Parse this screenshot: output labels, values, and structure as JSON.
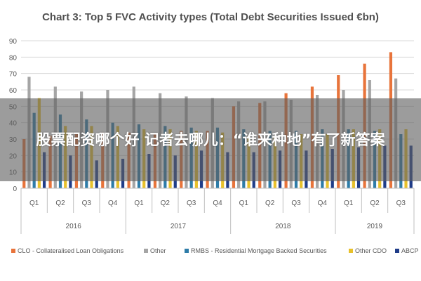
{
  "banner": {
    "text": "股票配资哪个好 记者去哪儿：“谁来种地”有了新答案"
  },
  "chart_data": {
    "type": "bar",
    "title": "Chart 3: Top 5 FVC Activity types (Total Debt Securities Issued €bn)",
    "ylim": [
      0,
      90
    ],
    "yticks": [
      0,
      10,
      20,
      30,
      40,
      50,
      60,
      70,
      80,
      90
    ],
    "grid": true,
    "legend_position": "bottom",
    "categories": [
      "Q1",
      "Q2",
      "Q3",
      "Q4",
      "Q1",
      "Q2",
      "Q3",
      "Q4",
      "Q1",
      "Q2",
      "Q3",
      "Q4",
      "Q1",
      "Q2",
      "Q3"
    ],
    "groups": [
      {
        "label": "2016",
        "count": 4
      },
      {
        "label": "2017",
        "count": 4
      },
      {
        "label": "2018",
        "count": 4
      },
      {
        "label": "2019",
        "count": 3
      }
    ],
    "series": [
      {
        "name": "CLO - Collateralised Loan Obligations",
        "color": "#e8743b",
        "values": [
          30,
          32,
          33,
          34,
          34,
          33,
          35,
          35,
          50,
          52,
          58,
          62,
          69,
          76,
          83
        ]
      },
      {
        "name": "Other",
        "color": "#a5a5a5",
        "values": [
          68,
          62,
          59,
          60,
          62,
          58,
          56,
          55,
          53,
          53,
          54,
          57,
          60,
          66,
          67
        ]
      },
      {
        "name": "RMBS - Residential Mortgage Backed Securities",
        "color": "#2e7ca8",
        "values": [
          46,
          45,
          42,
          40,
          39,
          38,
          37,
          37,
          36,
          35,
          35,
          36,
          36,
          35,
          33
        ]
      },
      {
        "name": "Other CDO",
        "color": "#e8c12b",
        "values": [
          55,
          38,
          38,
          38,
          36,
          36,
          35,
          34,
          32,
          32,
          33,
          33,
          36,
          36,
          36
        ]
      },
      {
        "name": "ABCP",
        "color": "#1f3c88",
        "values": [
          22,
          20,
          17,
          18,
          21,
          20,
          23,
          22,
          22,
          23,
          23,
          24,
          25,
          26,
          26
        ]
      }
    ]
  }
}
